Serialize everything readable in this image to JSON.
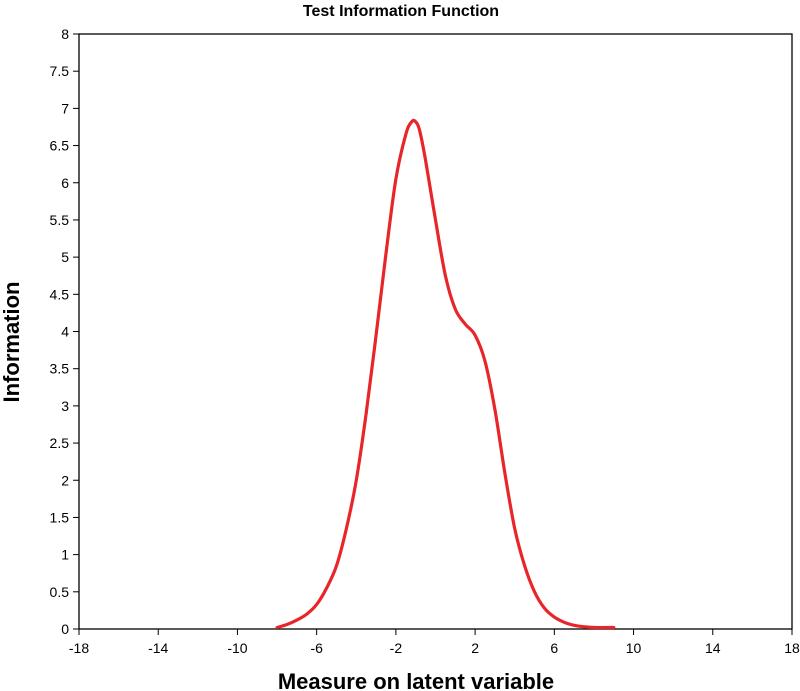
{
  "chart_data": {
    "type": "line",
    "title": "Test Information Function",
    "xlabel": "Measure on latent variable",
    "ylabel": "Information",
    "xlim": [
      -18,
      18
    ],
    "ylim": [
      0,
      8
    ],
    "x_ticks": [
      "-18",
      "-14",
      "-10",
      "-6",
      "-2",
      "2",
      "6",
      "10",
      "14",
      "18"
    ],
    "y_ticks": [
      "0",
      "0.5",
      "1",
      "1.5",
      "2",
      "2.5",
      "3",
      "3.5",
      "4",
      "4.5",
      "5",
      "5.5",
      "6",
      "6.5",
      "7",
      "7.5",
      "8"
    ],
    "grid": false,
    "legend": "none",
    "series": [
      {
        "color": "#e8262a",
        "x": [
          -8,
          -7.5,
          -7,
          -6.5,
          -6,
          -5.5,
          -5,
          -4.5,
          -4,
          -3.5,
          -3,
          -2.5,
          -2,
          -1.5,
          -1.2,
          -1,
          -0.8,
          -0.5,
          0,
          0.5,
          1,
          1.5,
          2,
          2.5,
          3,
          3.5,
          4,
          4.5,
          5,
          5.5,
          6,
          6.5,
          7,
          7.5,
          8,
          9
        ],
        "y": [
          0.02,
          0.06,
          0.12,
          0.2,
          0.33,
          0.55,
          0.85,
          1.35,
          2.0,
          2.9,
          3.95,
          5.05,
          6.05,
          6.65,
          6.82,
          6.82,
          6.7,
          6.3,
          5.5,
          4.75,
          4.3,
          4.1,
          3.95,
          3.6,
          2.95,
          2.1,
          1.35,
          0.85,
          0.5,
          0.28,
          0.16,
          0.09,
          0.05,
          0.03,
          0.02,
          0.02
        ]
      }
    ]
  }
}
